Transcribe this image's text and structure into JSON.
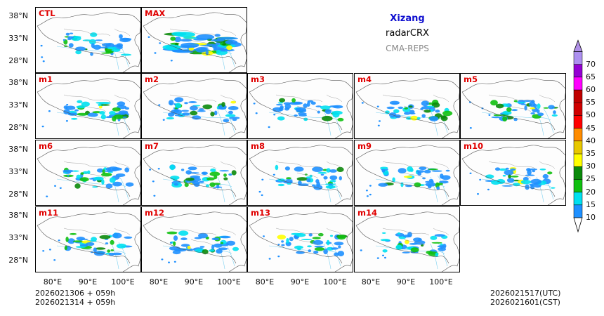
{
  "header": {
    "region": "Xizang",
    "product": "radarCRX",
    "model": "CMA-REPS"
  },
  "panels": [
    "CTL",
    "MAX",
    "m1",
    "m2",
    "m3",
    "m4",
    "m5",
    "m6",
    "m7",
    "m8",
    "m9",
    "m10",
    "m11",
    "m12",
    "m13",
    "m14"
  ],
  "axes": {
    "lat_ticks": [
      "38°N",
      "33°N",
      "28°N"
    ],
    "lon_ticks": [
      "80°E",
      "90°E",
      "100°E"
    ]
  },
  "footer": {
    "init_line1": "2026021306  +  059h",
    "init_line2": "2026021314  +  059h",
    "valid_utc": "2026021517(UTC)",
    "valid_cst": "2026021601(CST)"
  },
  "colorbar": {
    "levels": [
      "10",
      "15",
      "20",
      "25",
      "30",
      "35",
      "40",
      "45",
      "50",
      "55",
      "60",
      "65",
      "70"
    ],
    "colors": [
      "#1e90ff",
      "#00e0f0",
      "#10c010",
      "#0a8a0a",
      "#ffff00",
      "#e8c800",
      "#ff8c00",
      "#ff0000",
      "#d00000",
      "#c00000",
      "#ff00ff",
      "#9400d3",
      "#ad90f0"
    ],
    "under_color": "#ffffff",
    "over_color": "#b090e8"
  }
}
